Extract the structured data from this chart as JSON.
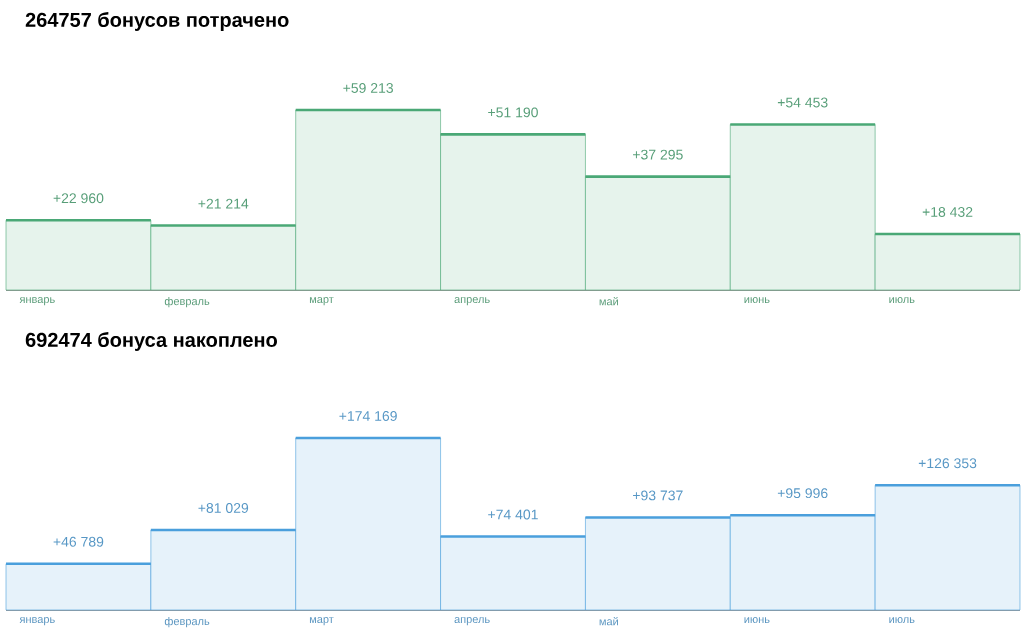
{
  "chart_data": [
    {
      "type": "bar",
      "title": "264757 бонусов потрачено",
      "categories": [
        "январь",
        "февраль",
        "март",
        "апрель",
        "май",
        "июнь",
        "июль"
      ],
      "values": [
        22960,
        21214,
        59213,
        51190,
        37295,
        54453,
        18432
      ],
      "color": "#4aa876",
      "value_labels": [
        "+22 960",
        "+21 214",
        "+59 213",
        "+51 190",
        "+37 295",
        "+54 453",
        "+18 432"
      ]
    },
    {
      "type": "bar",
      "title": "692474 бонуса накоплено",
      "categories": [
        "январь",
        "февраль",
        "март",
        "апрель",
        "май",
        "июнь",
        "июль"
      ],
      "values": [
        46789,
        81029,
        174169,
        74401,
        93737,
        95996,
        126353
      ],
      "color": "#4a9fdc",
      "value_labels": [
        "+46 789",
        "+81 029",
        "+174 169",
        "+74 401",
        "+93 737",
        "+95 996",
        "+126 353"
      ]
    }
  ]
}
